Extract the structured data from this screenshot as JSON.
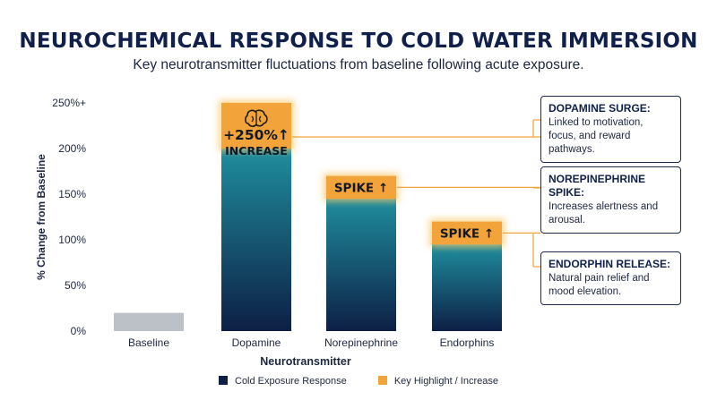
{
  "title": "NEUROCHEMICAL RESPONSE TO COLD WATER IMMERSION",
  "subtitle": "Key neurotransmitter fluctuations from baseline following acute exposure.",
  "colors": {
    "bar_top": "#1f8e9e",
    "bar_bottom": "#0d1f45",
    "baseline_bar": "#bcc1c7",
    "highlight": "#f2a33a",
    "highlight_glow": "#ffc766",
    "axis_text": "#1d2740",
    "callout_border": "#1d2b4d",
    "leader_line": "#f2a33a"
  },
  "chart_data": {
    "type": "bar",
    "xlabel": "Neurotransmitter",
    "ylabel": "% Change from Baseline",
    "ylim": [
      0,
      250
    ],
    "yticks": [
      0,
      50,
      100,
      150,
      200,
      250
    ],
    "ytick_labels": [
      "0%",
      "50%",
      "100%",
      "150%",
      "200%",
      "250%+"
    ],
    "categories": [
      "Baseline",
      "Dopamine",
      "Norepinephrine",
      "Endorphins"
    ],
    "values": [
      20,
      250,
      170,
      120
    ],
    "highlight_start": [
      null,
      200,
      145,
      95
    ],
    "highlight_labels": [
      null,
      "+250%↑",
      "SPIKE ↑",
      "SPIKE ↑"
    ],
    "highlight_sublabels": [
      null,
      "INCREASE",
      null,
      null
    ],
    "highlight_icons": [
      null,
      "brain-icon",
      null,
      null
    ],
    "grid": false,
    "legend_position": "bottom",
    "legend": [
      {
        "label": "Cold Exposure Response",
        "color": "#0d1f45"
      },
      {
        "label": "Key Highlight / Increase",
        "color": "#f2a33a"
      }
    ]
  },
  "callouts": [
    {
      "title": "DOPAMINE SURGE:",
      "text": "Linked to motivation, focus, and reward pathways."
    },
    {
      "title": "NOREPINEPHRINE SPIKE:",
      "text": "Increases alertness and arousal."
    },
    {
      "title": "ENDORPHIN RELEASE:",
      "text": "Natural pain relief and mood elevation."
    }
  ]
}
